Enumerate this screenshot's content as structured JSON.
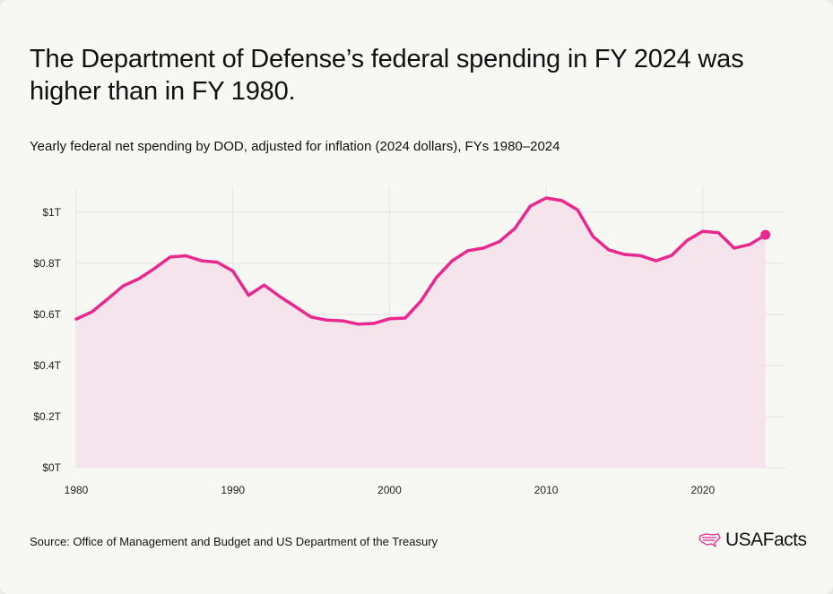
{
  "title": "The Department of Defense’s federal spending in FY 2024 was higher than in FY 1980.",
  "subtitle": "Yearly federal net spending by DOD, adjusted for inflation (2024 dollars), FYs 1980–2024",
  "source": "Source: Office of Management and Budget and US Department of the Treasury",
  "logo": "USAFacts",
  "colors": {
    "line": "#e8288f",
    "fill": "#f5e4ec",
    "grid": "#e6e3e3",
    "background": "#f7f7f3"
  },
  "chart_data": {
    "type": "area",
    "xlim": [
      1980,
      2025
    ],
    "ylim": [
      0,
      1.1
    ],
    "grid": true,
    "x_ticks": [
      1980,
      1990,
      2000,
      2010,
      2020
    ],
    "x_tick_labels": [
      "1980",
      "1990",
      "2000",
      "2010",
      "2020"
    ],
    "y_ticks": [
      0,
      0.2,
      0.4,
      0.6,
      0.8,
      1.0
    ],
    "y_tick_labels": [
      "$0T",
      "$0.2T",
      "$0.4T",
      "$0.6T",
      "$0.8T",
      "$1T"
    ],
    "x": [
      1980,
      1981,
      1982,
      1983,
      1984,
      1985,
      1986,
      1987,
      1988,
      1989,
      1990,
      1991,
      1992,
      1993,
      1994,
      1995,
      1996,
      1997,
      1998,
      1999,
      2000,
      2001,
      2002,
      2003,
      2004,
      2005,
      2006,
      2007,
      2008,
      2009,
      2010,
      2011,
      2012,
      2013,
      2014,
      2015,
      2016,
      2017,
      2018,
      2019,
      2020,
      2021,
      2022,
      2023,
      2024
    ],
    "values": [
      0.582,
      0.61,
      0.66,
      0.712,
      0.74,
      0.78,
      0.825,
      0.83,
      0.81,
      0.805,
      0.77,
      0.675,
      0.715,
      0.67,
      0.63,
      0.59,
      0.578,
      0.575,
      0.562,
      0.565,
      0.583,
      0.586,
      0.652,
      0.745,
      0.81,
      0.85,
      0.86,
      0.885,
      0.937,
      1.025,
      1.056,
      1.046,
      1.01,
      0.905,
      0.853,
      0.835,
      0.831,
      0.81,
      0.831,
      0.89,
      0.926,
      0.92,
      0.86,
      0.874,
      0.912
    ],
    "unit": "trillions of 2024 dollars",
    "highlight_last_point": true
  }
}
